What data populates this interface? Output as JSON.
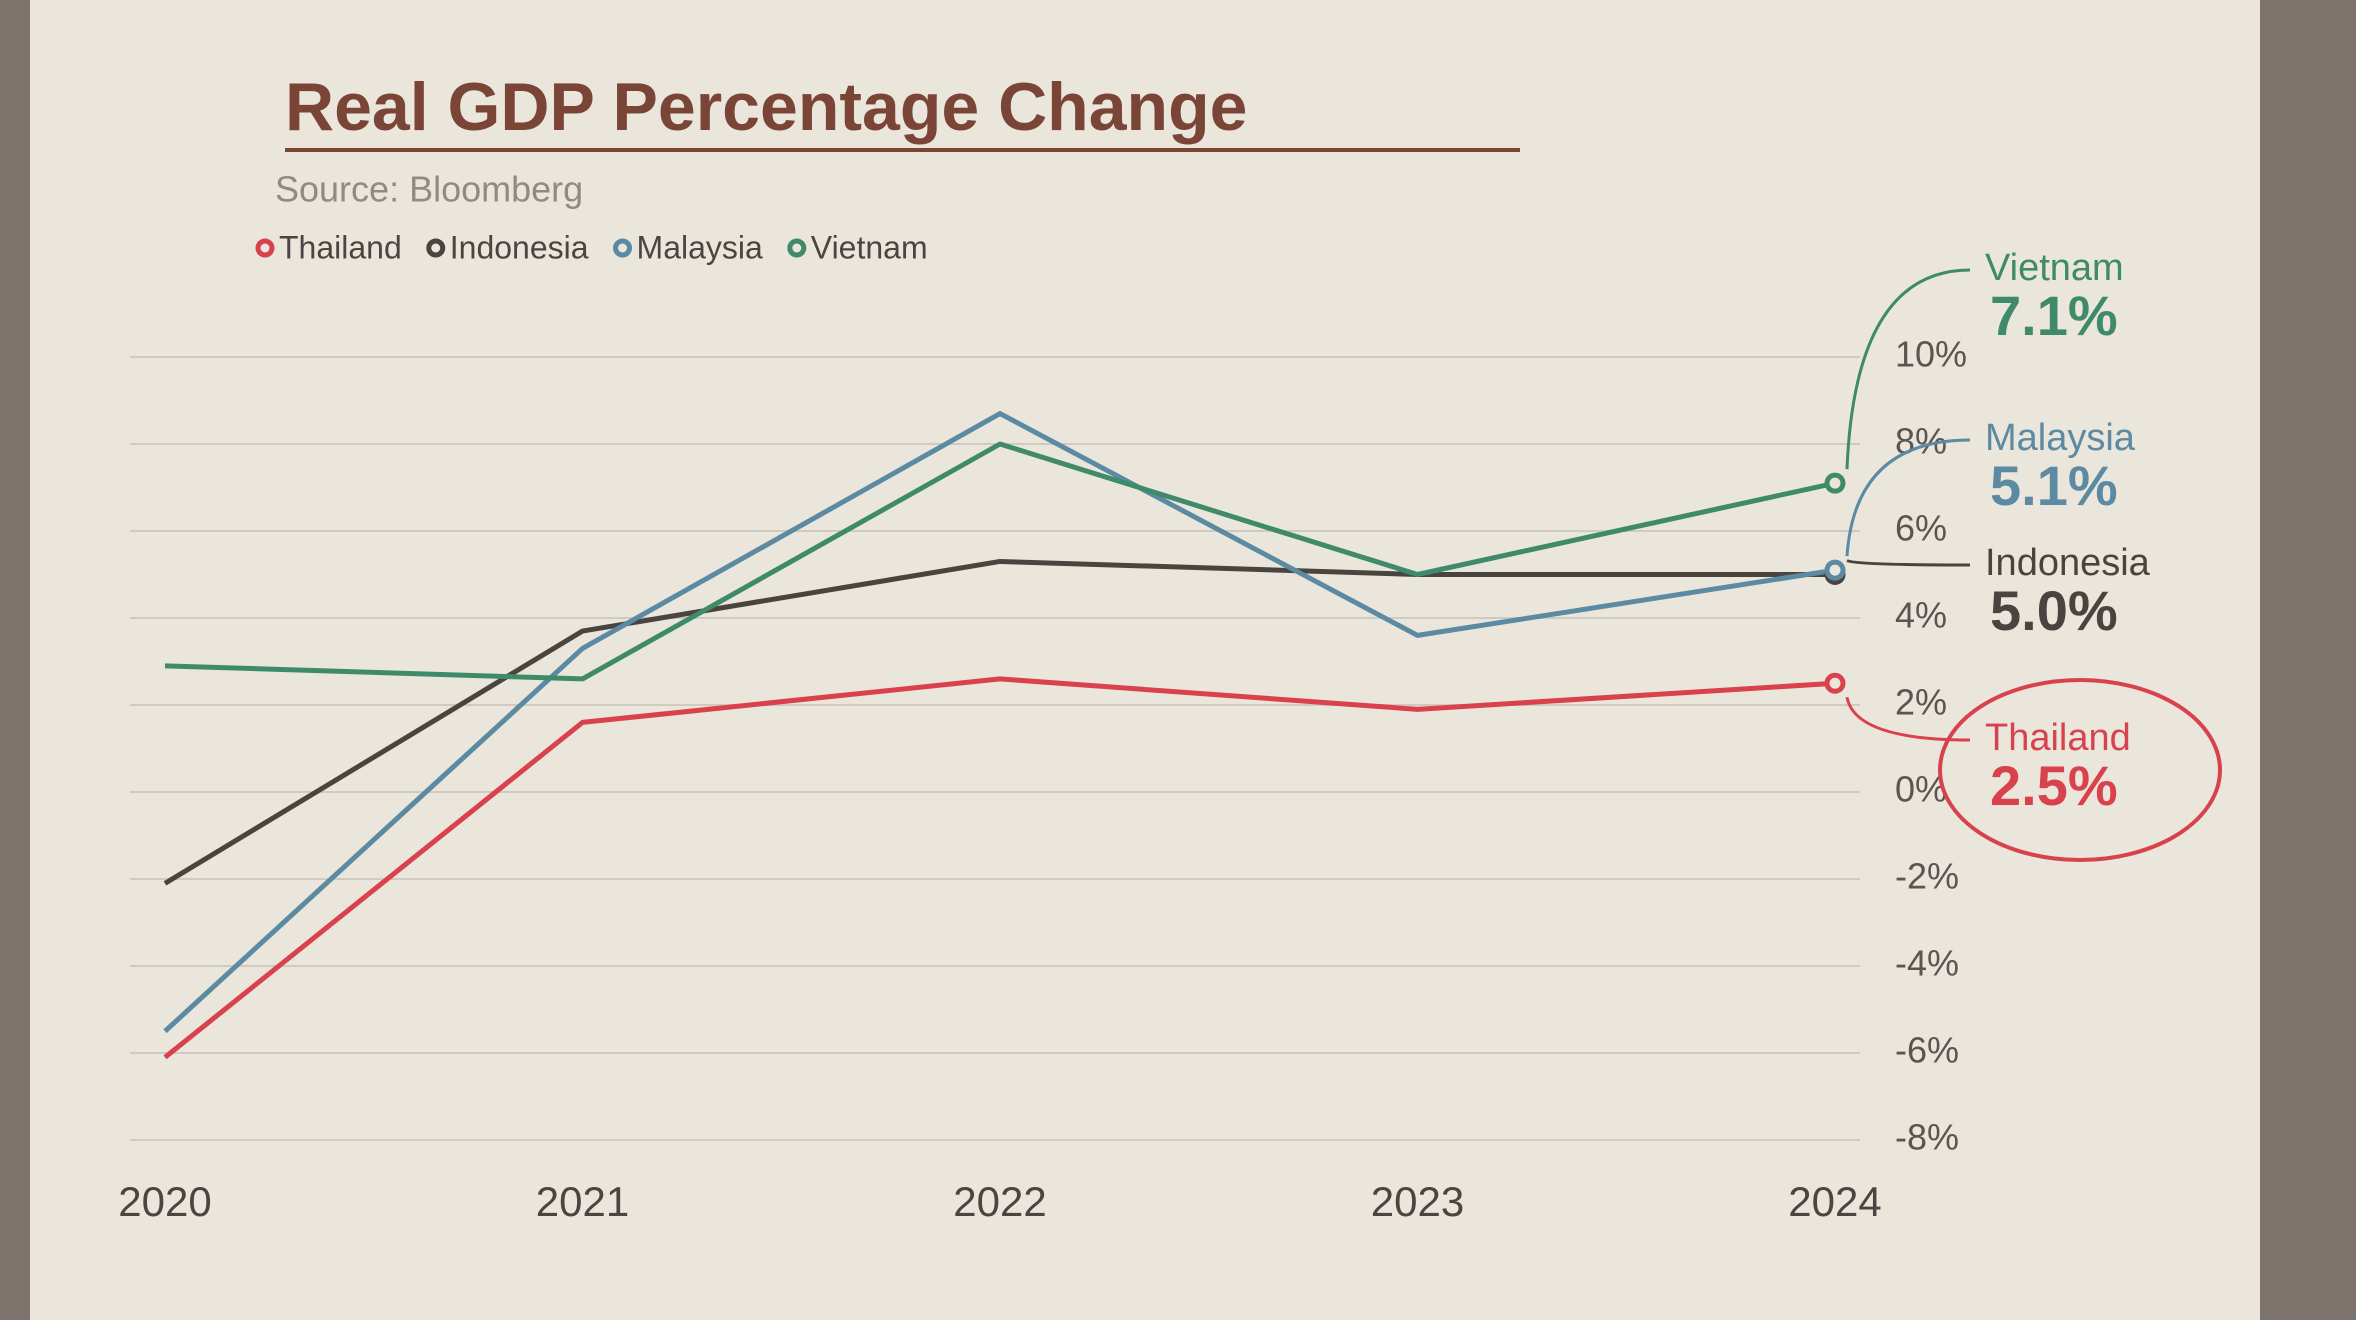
{
  "chart_data": {
    "type": "line",
    "title": "Real GDP Percentage Change",
    "subtitle": "Source: Bloomberg",
    "categories": [
      "2020",
      "2021",
      "2022",
      "2023",
      "2024"
    ],
    "series": [
      {
        "name": "Thailand",
        "color": "#d9424c",
        "values": [
          -6.1,
          1.6,
          2.6,
          1.9,
          2.5
        ],
        "value_labels": [
          null,
          null,
          null,
          null,
          "2.5%"
        ]
      },
      {
        "name": "Indonesia",
        "color": "#4a4441",
        "values": [
          -2.1,
          3.7,
          5.3,
          5.0,
          5.0
        ],
        "value_labels": [
          null,
          null,
          null,
          null,
          "5.0%"
        ]
      },
      {
        "name": "Malaysia",
        "color": "#5b8aa2",
        "values": [
          -5.5,
          3.3,
          8.7,
          3.6,
          5.1
        ],
        "value_labels": [
          null,
          null,
          null,
          null,
          "5.1%"
        ]
      },
      {
        "name": "Vietnam",
        "color": "#3f8a6a",
        "values": [
          2.9,
          2.6,
          8.0,
          5.0,
          7.1
        ],
        "value_labels": [
          null,
          null,
          null,
          null,
          "7.1%"
        ]
      }
    ],
    "ylim": [
      -8,
      12
    ],
    "yticks": [
      {
        "value": -8,
        "label": "-8%"
      },
      {
        "value": -6,
        "label": "-6%"
      },
      {
        "value": -4,
        "label": "-4%"
      },
      {
        "value": -2,
        "label": "-2%"
      },
      {
        "value": 0,
        "label": "0%"
      },
      {
        "value": 2,
        "label": "2%"
      },
      {
        "value": 4,
        "label": "4%"
      },
      {
        "value": 6,
        "label": "6%"
      },
      {
        "value": 8,
        "label": "8%"
      },
      {
        "value": 10,
        "label": "10%"
      }
    ],
    "grid": true
  }
}
